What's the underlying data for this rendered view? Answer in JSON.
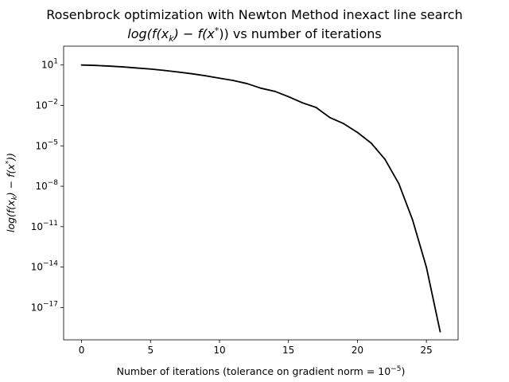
{
  "chart_data": {
    "type": "line",
    "title": "Rosenbrock optimization with Newton Method inexact line search",
    "subtitle": {
      "pre": "log(f(x",
      "sub": "k",
      "mid": ") − f(x",
      "sup": "*",
      "post": ")) vs number of iterations"
    },
    "xlabel": {
      "text": "Number of iterations (tolerance on gradient norm = 10",
      "sup": "−5",
      "post": ")"
    },
    "ylabel": {
      "pre": "log(f(x",
      "sub": "k",
      "mid": ") − f(x",
      "sup": "*",
      "post": "))"
    },
    "y_scale": "log",
    "xlim": [
      -1.3,
      27.3
    ],
    "ylim_exp": [
      -19.4,
      2.4
    ],
    "x_ticks": [
      0,
      5,
      10,
      15,
      20,
      25
    ],
    "x_tick_labels": [
      "0",
      "5",
      "10",
      "15",
      "20",
      "25"
    ],
    "y_ticks": [
      1,
      -2,
      -5,
      -8,
      -11,
      -14,
      -17
    ],
    "y_tick_labels": [
      "1",
      "−2",
      "−5",
      "−8",
      "−11",
      "−14",
      "−17"
    ],
    "y_tick_base": "10",
    "grid": false,
    "series": [
      {
        "color": "#000000",
        "x": [
          0,
          1,
          2,
          3,
          4,
          5,
          6,
          7,
          8,
          9,
          10,
          11,
          12,
          13,
          14,
          15,
          16,
          17,
          18,
          19,
          20,
          21,
          22,
          23,
          24,
          25,
          26
        ],
        "y_log10": [
          1.0,
          0.97,
          0.92,
          0.86,
          0.78,
          0.7,
          0.6,
          0.48,
          0.35,
          0.2,
          0.02,
          -0.15,
          -0.38,
          -0.72,
          -0.95,
          -1.35,
          -1.8,
          -2.15,
          -2.9,
          -3.35,
          -4.0,
          -4.8,
          -6.0,
          -7.8,
          -10.5,
          -14.0,
          -18.8
        ]
      }
    ]
  }
}
